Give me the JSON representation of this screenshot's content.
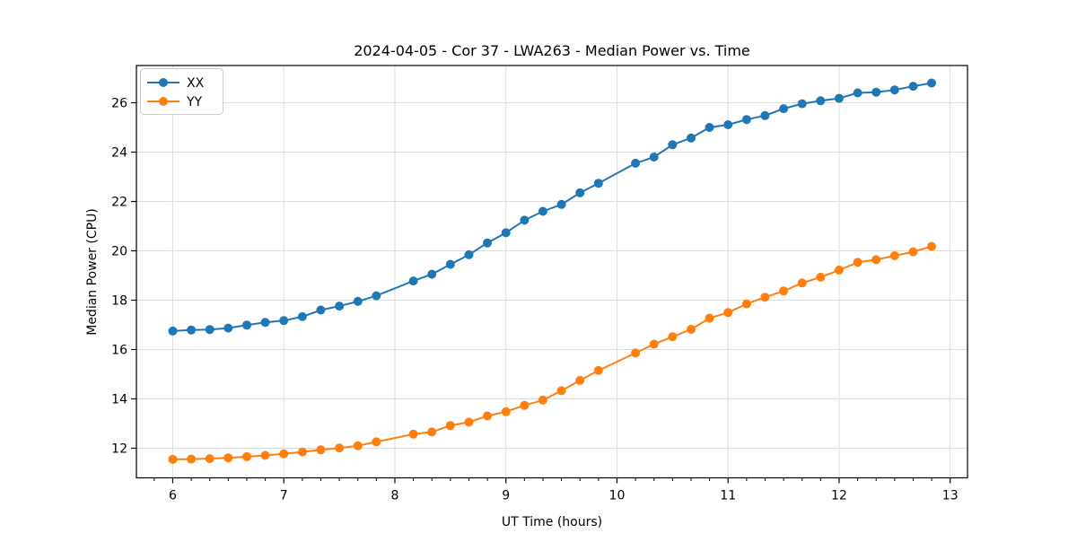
{
  "figure": {
    "background": "#ffffff",
    "spine_color": "#000000",
    "grid_color": "#dddddd",
    "tick_color": "#000000"
  },
  "chart_data": {
    "type": "line",
    "title": "2024-04-05 - Cor 37 - LWA263 - Median Power vs. Time",
    "xlabel": "UT Time (hours)",
    "ylabel": "Median Power (CPU)",
    "xlim": [
      5.673,
      13.156
    ],
    "ylim": [
      10.8,
      27.51
    ],
    "x_ticks": [
      6,
      7,
      8,
      9,
      10,
      11,
      12,
      13
    ],
    "x_tick_labels": [
      "6",
      "7",
      "8",
      "9",
      "10",
      "11",
      "12",
      "13"
    ],
    "y_ticks": [
      12,
      14,
      16,
      18,
      20,
      22,
      24,
      26
    ],
    "y_tick_labels": [
      "12",
      "14",
      "16",
      "18",
      "20",
      "22",
      "24",
      "26"
    ],
    "grid": true,
    "x_minor_tick_interval": 0.16667,
    "legend_position": "upper-left",
    "note_missing_samples": [
      8.0,
      10.0
    ],
    "x": [
      6.0,
      6.167,
      6.333,
      6.5,
      6.667,
      6.833,
      7.0,
      7.167,
      7.333,
      7.5,
      7.667,
      7.833,
      8.167,
      8.333,
      8.5,
      8.667,
      8.833,
      9.0,
      9.167,
      9.333,
      9.5,
      9.667,
      9.833,
      10.167,
      10.333,
      10.5,
      10.667,
      10.833,
      11.0,
      11.167,
      11.333,
      11.5,
      11.667,
      11.833,
      12.0,
      12.167,
      12.333,
      12.5,
      12.667,
      12.833
    ],
    "series": [
      {
        "name": "XX",
        "color": "#1f77b4",
        "marker": "circle",
        "values": [
          16.75,
          16.79,
          16.81,
          16.87,
          16.99,
          17.1,
          17.17,
          17.33,
          17.6,
          17.76,
          17.95,
          18.18,
          18.78,
          19.05,
          19.45,
          19.84,
          20.32,
          20.73,
          21.24,
          21.6,
          21.88,
          22.35,
          22.74,
          23.55,
          23.8,
          24.3,
          24.57,
          25.0,
          25.11,
          25.32,
          25.48,
          25.76,
          25.96,
          26.08,
          26.18,
          26.4,
          26.43,
          26.52,
          26.67,
          26.8
        ]
      },
      {
        "name": "YY",
        "color": "#ff7f0e",
        "marker": "circle",
        "values": [
          11.55,
          11.56,
          11.58,
          11.61,
          11.66,
          11.71,
          11.77,
          11.85,
          11.94,
          12.01,
          12.1,
          12.26,
          12.57,
          12.66,
          12.92,
          13.06,
          13.31,
          13.48,
          13.74,
          13.95,
          14.33,
          14.75,
          15.15,
          15.86,
          16.22,
          16.52,
          16.82,
          17.27,
          17.5,
          17.85,
          18.12,
          18.37,
          18.7,
          18.93,
          19.22,
          19.53,
          19.64,
          19.8,
          19.96,
          20.18
        ]
      }
    ]
  }
}
